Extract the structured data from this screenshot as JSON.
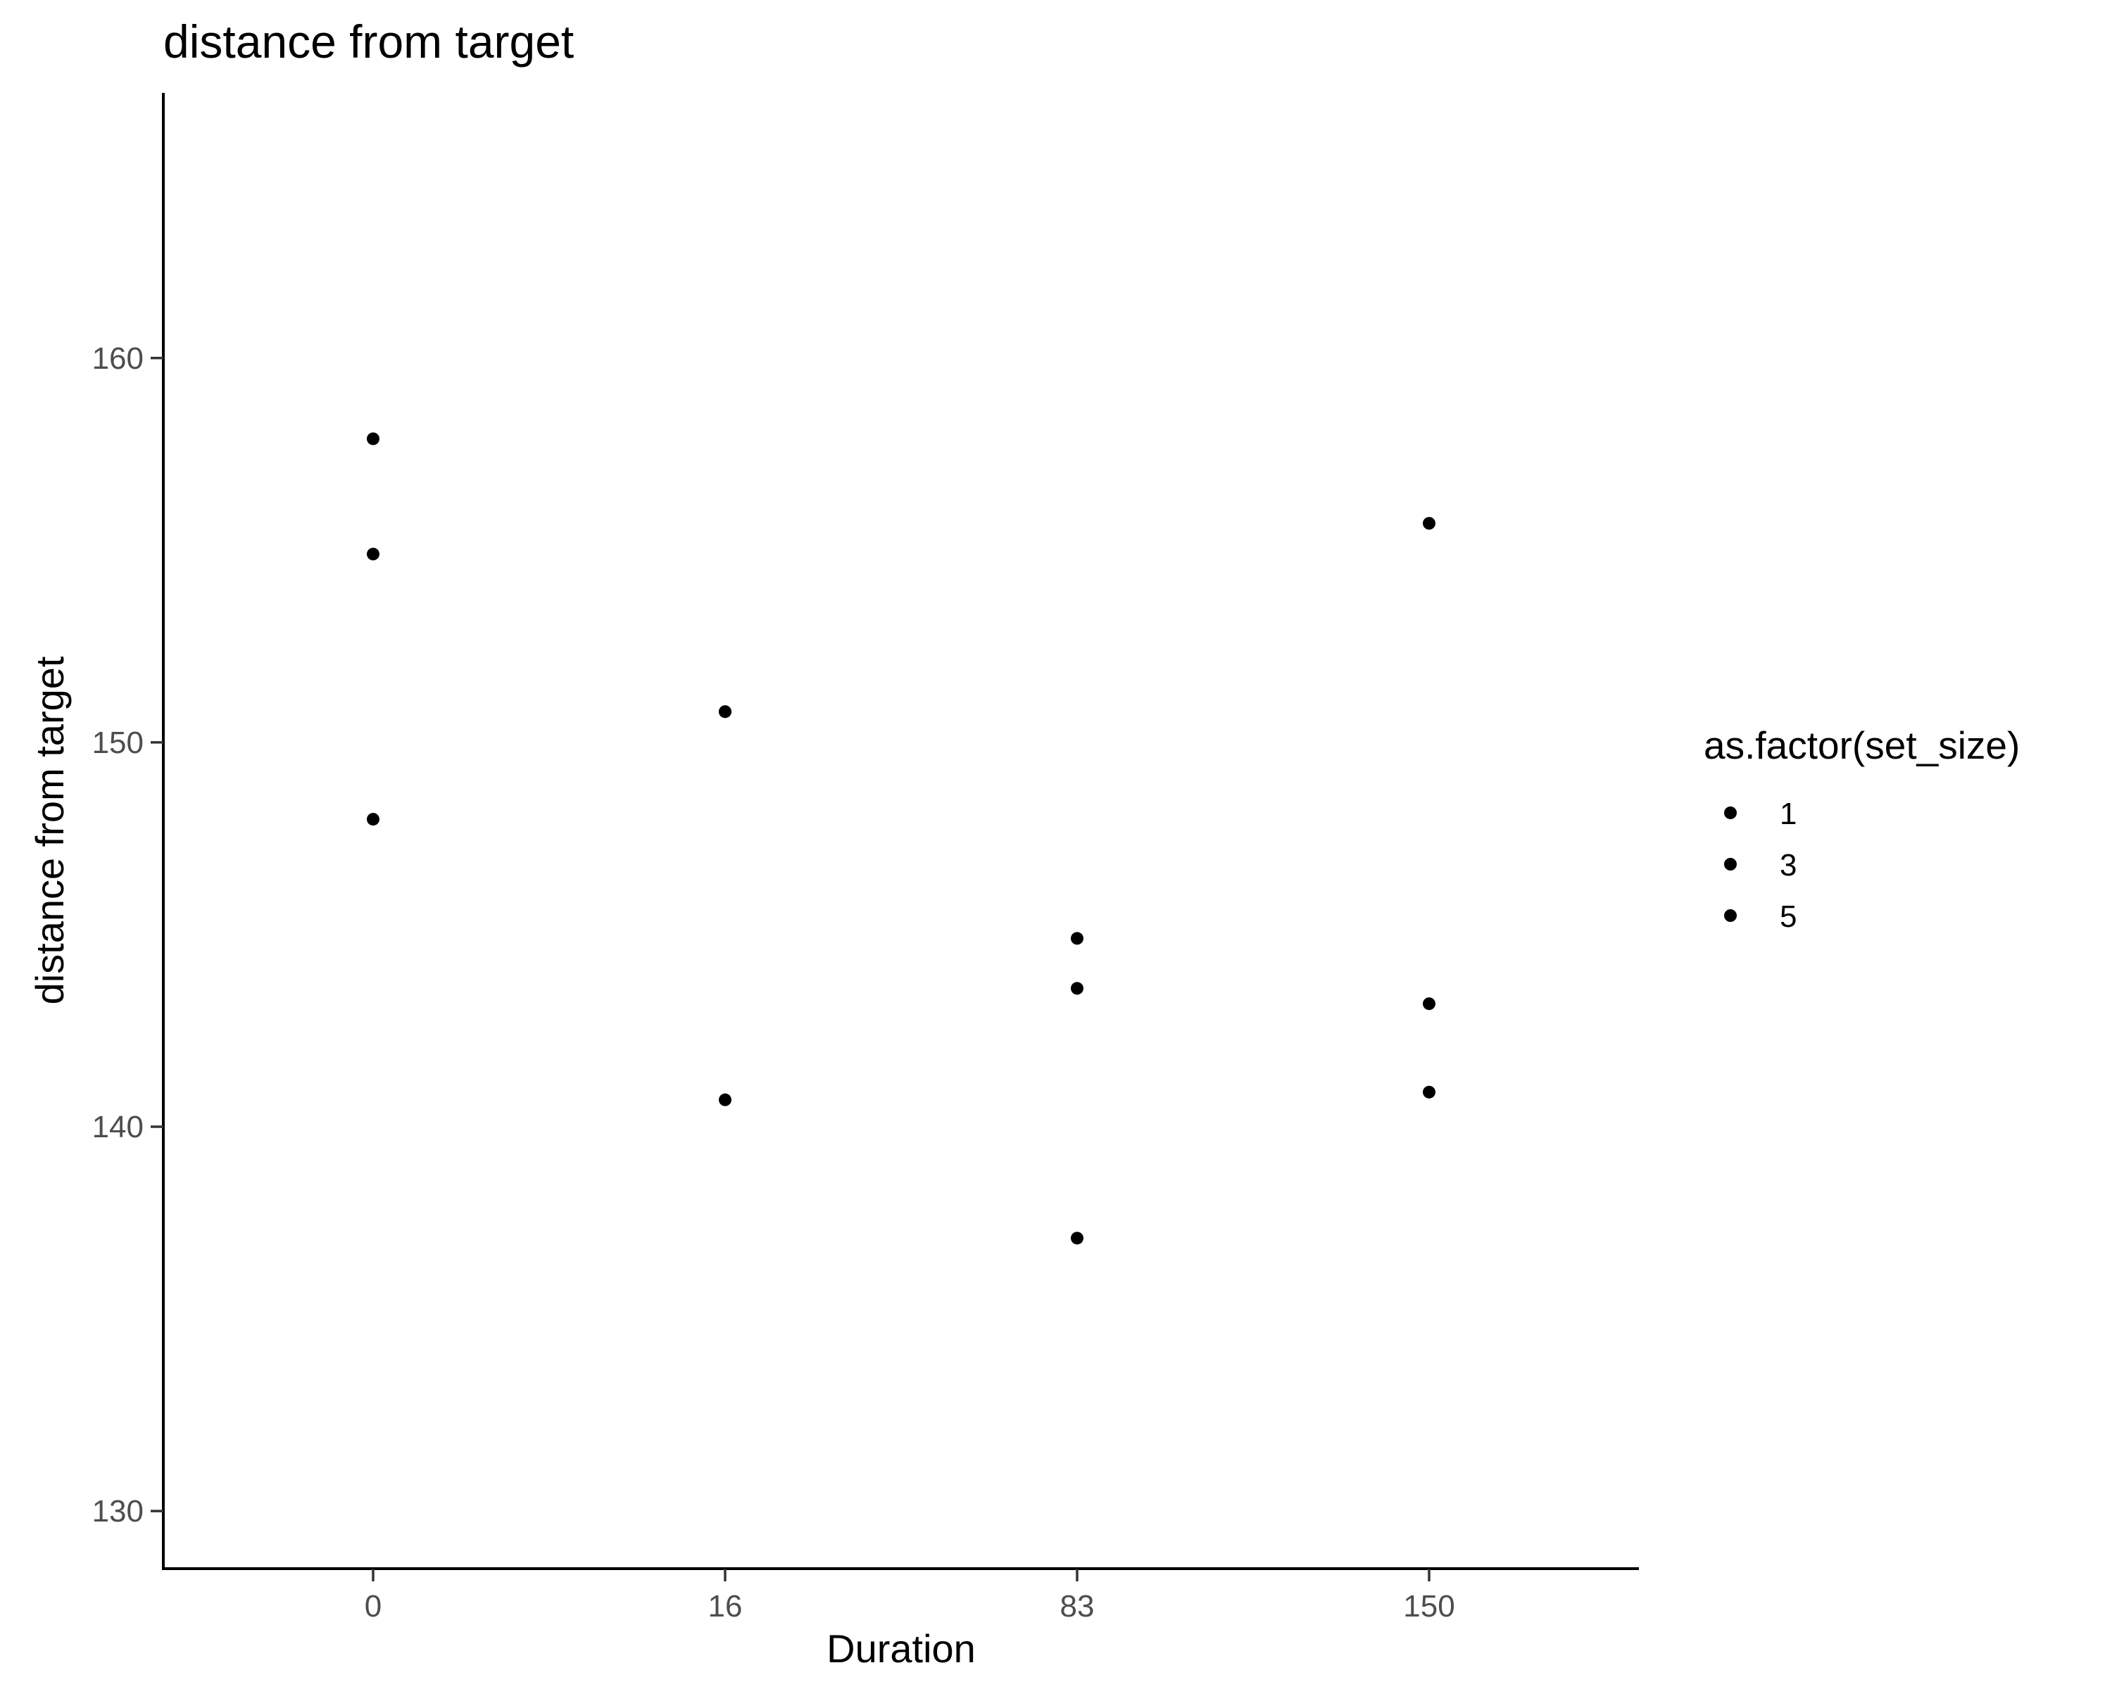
{
  "chart_data": {
    "type": "scatter",
    "title": "distance from target",
    "xlabel": "Duration",
    "ylabel": "distance from target",
    "x_categories": [
      "0",
      "16",
      "83",
      "150"
    ],
    "y_ticks": [
      130,
      140,
      150,
      160
    ],
    "ylim": [
      128.5,
      166.9
    ],
    "grid": false,
    "legend": {
      "title": "as.factor(set_size)",
      "position": "right",
      "entries": [
        "1",
        "3",
        "5"
      ]
    },
    "colors": {
      "point": "#000000",
      "axis": "#000000",
      "tick_label": "#4d4d4d"
    },
    "points": [
      {
        "x": "0",
        "y": 157.9
      },
      {
        "x": "0",
        "y": 154.9
      },
      {
        "x": "0",
        "y": 148.0
      },
      {
        "x": "16",
        "y": 150.8
      },
      {
        "x": "16",
        "y": 150.8
      },
      {
        "x": "16",
        "y": 140.7
      },
      {
        "x": "83",
        "y": 144.9
      },
      {
        "x": "83",
        "y": 143.6
      },
      {
        "x": "83",
        "y": 137.1
      },
      {
        "x": "150",
        "y": 155.7
      },
      {
        "x": "150",
        "y": 143.2
      },
      {
        "x": "150",
        "y": 140.9
      }
    ]
  }
}
